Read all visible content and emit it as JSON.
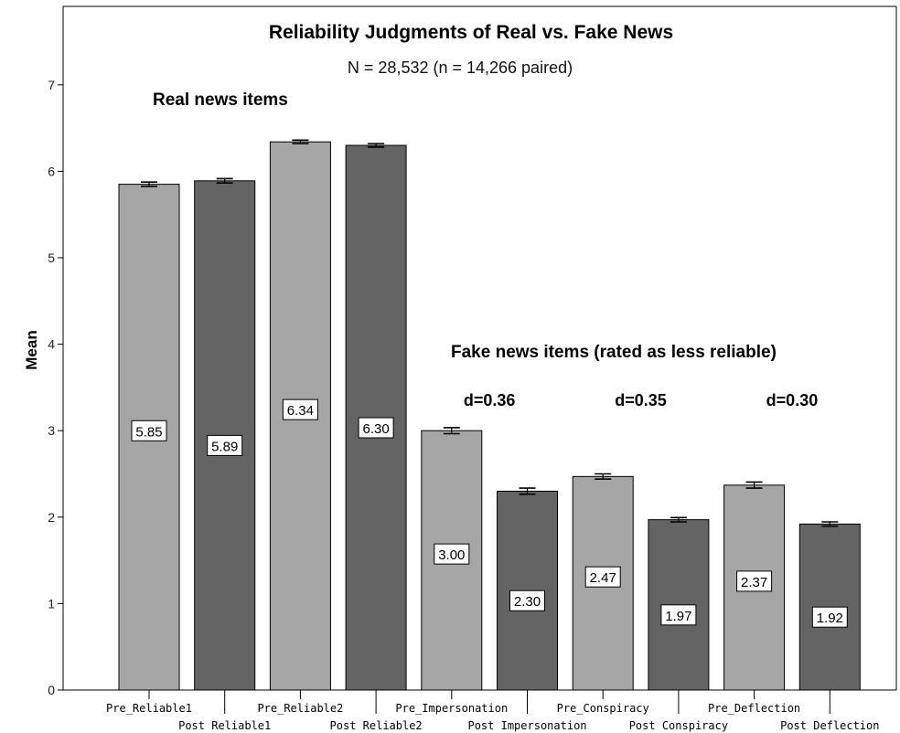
{
  "chart_data": {
    "type": "bar",
    "title": "Reliability Judgments of Real vs. Fake News",
    "subtitle": "N = 28,532 (n = 14,266 paired)",
    "ylabel": "Mean",
    "xlabel": "",
    "ylim": [
      0,
      7
    ],
    "yticks": [
      0,
      1,
      2,
      3,
      4,
      5,
      6,
      7
    ],
    "grid": false,
    "categories": [
      "Pre_Reliable1",
      "Post_Reliable1",
      "Pre_Reliable2",
      "Post_Reliable2",
      "Pre_Impersonation",
      "Post_Impersonation",
      "Pre_Conspiracy",
      "Post_Conspiracy",
      "Pre_Deflection",
      "Post_Deflection"
    ],
    "values": [
      5.85,
      5.89,
      6.34,
      6.3,
      3.0,
      2.3,
      2.47,
      1.97,
      2.37,
      1.92
    ],
    "value_labels": [
      "5.85",
      "5.89",
      "6.34",
      "6.30",
      "3.00",
      "2.30",
      "2.47",
      "1.97",
      "2.37",
      "1.92"
    ],
    "error": [
      0.025,
      0.025,
      0.02,
      0.02,
      0.035,
      0.035,
      0.03,
      0.025,
      0.035,
      0.025
    ],
    "annotations": {
      "real": "Real news items",
      "fake": "Fake news items (rated as less reliable)",
      "d_values": [
        "d=0.36",
        "d=0.35",
        "d=0.30"
      ]
    },
    "colors": {
      "pre": "#a6a6a6",
      "post": "#646464",
      "outline": "#000000",
      "background": "#ffffff"
    }
  }
}
